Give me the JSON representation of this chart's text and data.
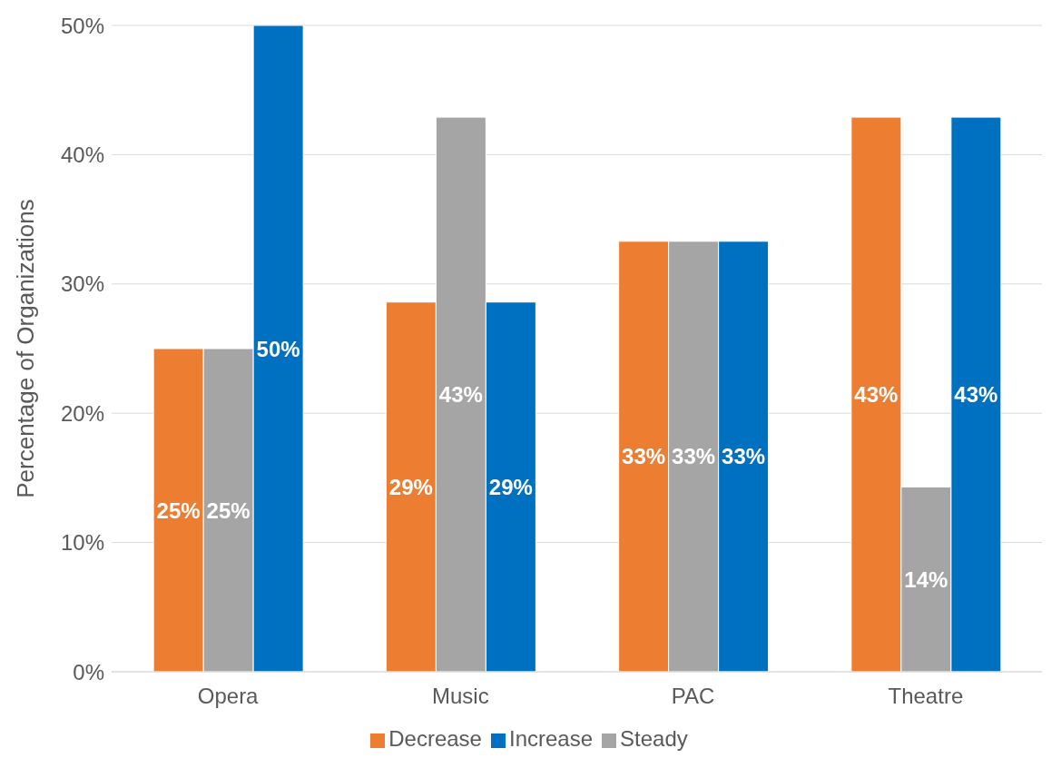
{
  "chart_data": {
    "type": "bar",
    "ylabel": "Percentage of Organizations",
    "categories": [
      "Opera",
      "Music",
      "PAC",
      "Theatre"
    ],
    "series": [
      {
        "name": "Decrease",
        "color": "#ed7d31",
        "values": [
          25,
          28.6,
          33.3,
          42.9
        ],
        "value_labels": [
          "25%",
          "29%",
          "33%",
          "43%"
        ]
      },
      {
        "name": "Steady",
        "color": "#a5a5a5",
        "values": [
          25,
          42.9,
          33.3,
          14.3
        ],
        "value_labels": [
          "25%",
          "43%",
          "33%",
          "14%"
        ]
      },
      {
        "name": "Increase",
        "color": "#0070c0",
        "values": [
          50,
          28.6,
          33.3,
          42.9
        ],
        "value_labels": [
          "50%",
          "29%",
          "33%",
          "43%"
        ]
      }
    ],
    "ylim": [
      0,
      50
    ],
    "yticks": [
      {
        "value": 0,
        "label": "0%"
      },
      {
        "value": 10,
        "label": "10%"
      },
      {
        "value": 20,
        "label": "20%"
      },
      {
        "value": 30,
        "label": "30%"
      },
      {
        "value": 40,
        "label": "40%"
      },
      {
        "value": 50,
        "label": "50%"
      }
    ],
    "grid": "y",
    "legend": "bottom"
  }
}
